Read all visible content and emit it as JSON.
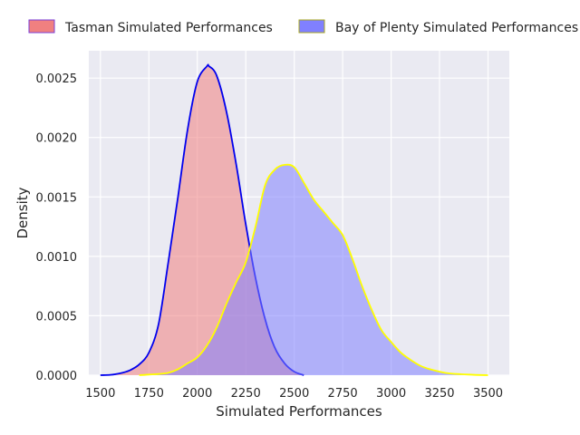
{
  "chart_data": {
    "type": "area",
    "title": "",
    "xlabel": "Simulated Performances",
    "ylabel": "Density",
    "xlim": [
      1440,
      3610
    ],
    "ylim": [
      0,
      0.00273
    ],
    "x_ticks": [
      1500,
      1750,
      2000,
      2250,
      2500,
      2750,
      3000,
      3250,
      3500
    ],
    "x_tick_labels": [
      "1500",
      "1750",
      "2000",
      "2250",
      "2500",
      "2750",
      "3000",
      "3250",
      "3500"
    ],
    "y_ticks": [
      0,
      0.0005,
      0.001,
      0.0015,
      0.002,
      0.0025
    ],
    "y_tick_labels": [
      "0.0000",
      "0.0005",
      "0.0010",
      "0.0015",
      "0.0020",
      "0.0025"
    ],
    "grid": true,
    "legend_placement": "top-center, outside plot, 2 columns",
    "series": [
      {
        "name": "Tasman Simulated Performances",
        "fill_color": "#f08080",
        "line_color": "#0000ee",
        "x": [
          1500,
          1550,
          1600,
          1650,
          1700,
          1750,
          1800,
          1850,
          1900,
          1950,
          2000,
          2050,
          2060,
          2100,
          2150,
          2200,
          2250,
          2300,
          2350,
          2400,
          2450,
          2500,
          2550
        ],
        "y": [
          0.0,
          3e-06,
          1.5e-05,
          4e-05,
          9e-05,
          0.00019,
          0.00043,
          0.00095,
          0.0015,
          0.00207,
          0.00247,
          0.0026,
          0.0026,
          0.00252,
          0.00222,
          0.00178,
          0.00127,
          0.00082,
          0.00047,
          0.00023,
          0.0001,
          3e-05,
          0.0
        ]
      },
      {
        "name": "Bay of Plenty Simulated Performances",
        "fill_color": "#8080ff",
        "line_color": "#ffff00",
        "x": [
          1700,
          1750,
          1800,
          1850,
          1900,
          1950,
          2000,
          2050,
          2100,
          2150,
          2200,
          2250,
          2300,
          2350,
          2400,
          2450,
          2500,
          2550,
          2600,
          2650,
          2700,
          2750,
          2800,
          2850,
          2900,
          2950,
          3000,
          3050,
          3100,
          3150,
          3200,
          3250,
          3300,
          3400,
          3500
        ],
        "y": [
          0.0,
          5e-06,
          1e-05,
          2e-05,
          5e-05,
          0.0001,
          0.00015,
          0.00025,
          0.0004,
          0.0006,
          0.00078,
          0.00095,
          0.00125,
          0.0016,
          0.00173,
          0.00177,
          0.00175,
          0.00162,
          0.00148,
          0.00138,
          0.00128,
          0.00118,
          0.00098,
          0.00075,
          0.00055,
          0.00038,
          0.00028,
          0.00019,
          0.00013,
          8e-05,
          5e-05,
          3e-05,
          1.5e-05,
          5e-06,
          0.0
        ]
      }
    ]
  }
}
